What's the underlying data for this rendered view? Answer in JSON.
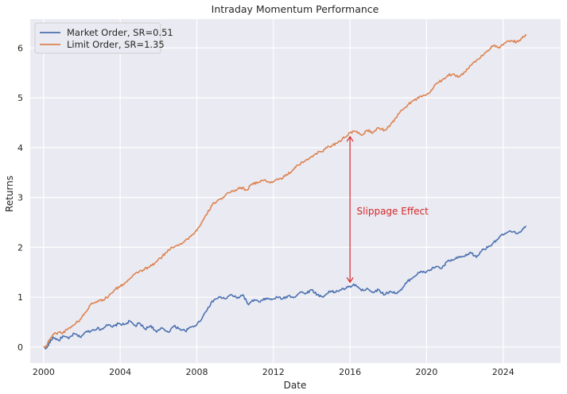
{
  "chart_data": {
    "type": "line",
    "title": "Intraday Momentum Performance",
    "xlabel": "Date",
    "ylabel": "Returns",
    "xlim": [
      1999.3,
      2027.0
    ],
    "ylim": [
      -0.32,
      6.58
    ],
    "x_ticks": [
      2000,
      2004,
      2008,
      2012,
      2016,
      2020,
      2024
    ],
    "y_ticks": [
      0,
      1,
      2,
      3,
      4,
      5,
      6
    ],
    "grid": true,
    "legend_position": "top-left",
    "colors": {
      "background": "#eaeaf2",
      "grid": "#ffffff",
      "market": "#4c72b0",
      "limit": "#dd8452",
      "annotation": "#d62728"
    },
    "series": [
      {
        "name": "Market Order, SR=0.51",
        "color": "#4c72b0",
        "points": [
          [
            2000.0,
            0.0
          ],
          [
            2000.15,
            -0.02
          ],
          [
            2000.3,
            0.08
          ],
          [
            2000.5,
            0.2
          ],
          [
            2000.8,
            0.13
          ],
          [
            2001.0,
            0.22
          ],
          [
            2001.3,
            0.17
          ],
          [
            2001.6,
            0.27
          ],
          [
            2001.9,
            0.2
          ],
          [
            2002.2,
            0.3
          ],
          [
            2002.5,
            0.33
          ],
          [
            2002.8,
            0.38
          ],
          [
            2003.0,
            0.35
          ],
          [
            2003.3,
            0.45
          ],
          [
            2003.6,
            0.4
          ],
          [
            2003.9,
            0.47
          ],
          [
            2004.2,
            0.45
          ],
          [
            2004.5,
            0.52
          ],
          [
            2004.8,
            0.42
          ],
          [
            2005.0,
            0.48
          ],
          [
            2005.3,
            0.36
          ],
          [
            2005.6,
            0.43
          ],
          [
            2005.9,
            0.3
          ],
          [
            2006.2,
            0.38
          ],
          [
            2006.5,
            0.3
          ],
          [
            2006.8,
            0.42
          ],
          [
            2007.1,
            0.37
          ],
          [
            2007.4,
            0.32
          ],
          [
            2007.7,
            0.4
          ],
          [
            2008.0,
            0.45
          ],
          [
            2008.3,
            0.6
          ],
          [
            2008.6,
            0.8
          ],
          [
            2008.9,
            0.95
          ],
          [
            2009.2,
            1.0
          ],
          [
            2009.5,
            0.97
          ],
          [
            2009.8,
            1.05
          ],
          [
            2010.1,
            0.98
          ],
          [
            2010.4,
            1.05
          ],
          [
            2010.7,
            0.85
          ],
          [
            2011.0,
            0.95
          ],
          [
            2011.3,
            0.9
          ],
          [
            2011.6,
            0.98
          ],
          [
            2011.9,
            0.95
          ],
          [
            2012.2,
            1.0
          ],
          [
            2012.5,
            0.97
          ],
          [
            2012.8,
            1.03
          ],
          [
            2013.1,
            1.0
          ],
          [
            2013.4,
            1.1
          ],
          [
            2013.7,
            1.08
          ],
          [
            2014.0,
            1.15
          ],
          [
            2014.3,
            1.05
          ],
          [
            2014.6,
            1.0
          ],
          [
            2014.9,
            1.12
          ],
          [
            2015.2,
            1.1
          ],
          [
            2015.5,
            1.15
          ],
          [
            2015.8,
            1.18
          ],
          [
            2016.0,
            1.22
          ],
          [
            2016.3,
            1.25
          ],
          [
            2016.6,
            1.13
          ],
          [
            2016.9,
            1.18
          ],
          [
            2017.2,
            1.1
          ],
          [
            2017.5,
            1.15
          ],
          [
            2017.8,
            1.05
          ],
          [
            2018.1,
            1.12
          ],
          [
            2018.4,
            1.08
          ],
          [
            2018.7,
            1.15
          ],
          [
            2019.0,
            1.32
          ],
          [
            2019.3,
            1.4
          ],
          [
            2019.6,
            1.5
          ],
          [
            2019.9,
            1.5
          ],
          [
            2020.2,
            1.55
          ],
          [
            2020.5,
            1.62
          ],
          [
            2020.8,
            1.58
          ],
          [
            2021.1,
            1.72
          ],
          [
            2021.4,
            1.75
          ],
          [
            2021.7,
            1.8
          ],
          [
            2022.0,
            1.82
          ],
          [
            2022.3,
            1.9
          ],
          [
            2022.6,
            1.8
          ],
          [
            2022.9,
            1.95
          ],
          [
            2023.2,
            2.0
          ],
          [
            2023.5,
            2.1
          ],
          [
            2023.8,
            2.2
          ],
          [
            2024.1,
            2.28
          ],
          [
            2024.4,
            2.32
          ],
          [
            2024.7,
            2.28
          ],
          [
            2025.0,
            2.35
          ],
          [
            2025.2,
            2.42
          ]
        ]
      },
      {
        "name": "Limit Order, SR=1.35",
        "color": "#dd8452",
        "points": [
          [
            2000.0,
            0.0
          ],
          [
            2000.15,
            0.02
          ],
          [
            2000.3,
            0.15
          ],
          [
            2000.5,
            0.25
          ],
          [
            2000.8,
            0.3
          ],
          [
            2001.0,
            0.28
          ],
          [
            2001.3,
            0.38
          ],
          [
            2001.6,
            0.45
          ],
          [
            2001.9,
            0.55
          ],
          [
            2002.2,
            0.7
          ],
          [
            2002.5,
            0.88
          ],
          [
            2002.8,
            0.92
          ],
          [
            2003.1,
            0.95
          ],
          [
            2003.4,
            1.02
          ],
          [
            2003.7,
            1.15
          ],
          [
            2004.0,
            1.22
          ],
          [
            2004.3,
            1.3
          ],
          [
            2004.6,
            1.4
          ],
          [
            2004.9,
            1.5
          ],
          [
            2005.2,
            1.55
          ],
          [
            2005.5,
            1.6
          ],
          [
            2005.8,
            1.68
          ],
          [
            2006.1,
            1.78
          ],
          [
            2006.4,
            1.9
          ],
          [
            2006.7,
            2.0
          ],
          [
            2007.0,
            2.05
          ],
          [
            2007.3,
            2.1
          ],
          [
            2007.6,
            2.2
          ],
          [
            2007.9,
            2.3
          ],
          [
            2008.2,
            2.45
          ],
          [
            2008.5,
            2.65
          ],
          [
            2008.8,
            2.85
          ],
          [
            2009.1,
            2.95
          ],
          [
            2009.4,
            3.0
          ],
          [
            2009.7,
            3.1
          ],
          [
            2010.0,
            3.15
          ],
          [
            2010.3,
            3.2
          ],
          [
            2010.6,
            3.15
          ],
          [
            2010.9,
            3.28
          ],
          [
            2011.2,
            3.3
          ],
          [
            2011.5,
            3.35
          ],
          [
            2011.8,
            3.3
          ],
          [
            2012.1,
            3.35
          ],
          [
            2012.4,
            3.38
          ],
          [
            2012.7,
            3.45
          ],
          [
            2013.0,
            3.55
          ],
          [
            2013.3,
            3.65
          ],
          [
            2013.6,
            3.72
          ],
          [
            2013.9,
            3.8
          ],
          [
            2014.2,
            3.88
          ],
          [
            2014.5,
            3.92
          ],
          [
            2014.8,
            4.0
          ],
          [
            2015.1,
            4.05
          ],
          [
            2015.4,
            4.12
          ],
          [
            2015.7,
            4.2
          ],
          [
            2016.0,
            4.3
          ],
          [
            2016.3,
            4.32
          ],
          [
            2016.6,
            4.25
          ],
          [
            2016.9,
            4.35
          ],
          [
            2017.2,
            4.3
          ],
          [
            2017.5,
            4.4
          ],
          [
            2017.8,
            4.35
          ],
          [
            2018.1,
            4.45
          ],
          [
            2018.4,
            4.6
          ],
          [
            2018.7,
            4.75
          ],
          [
            2019.0,
            4.85
          ],
          [
            2019.3,
            4.95
          ],
          [
            2019.6,
            5.0
          ],
          [
            2019.9,
            5.05
          ],
          [
            2020.2,
            5.12
          ],
          [
            2020.5,
            5.28
          ],
          [
            2020.8,
            5.35
          ],
          [
            2021.1,
            5.45
          ],
          [
            2021.4,
            5.48
          ],
          [
            2021.7,
            5.42
          ],
          [
            2022.0,
            5.52
          ],
          [
            2022.3,
            5.65
          ],
          [
            2022.6,
            5.75
          ],
          [
            2022.9,
            5.85
          ],
          [
            2023.2,
            5.95
          ],
          [
            2023.5,
            6.05
          ],
          [
            2023.8,
            6.0
          ],
          [
            2024.1,
            6.1
          ],
          [
            2024.4,
            6.15
          ],
          [
            2024.7,
            6.12
          ],
          [
            2025.0,
            6.2
          ],
          [
            2025.2,
            6.25
          ]
        ]
      }
    ],
    "annotation": {
      "text": "Slippage Effect",
      "x": 2016.0,
      "y_top": 4.22,
      "y_bottom": 1.3,
      "text_x": 2016.35,
      "text_y": 2.72
    }
  }
}
